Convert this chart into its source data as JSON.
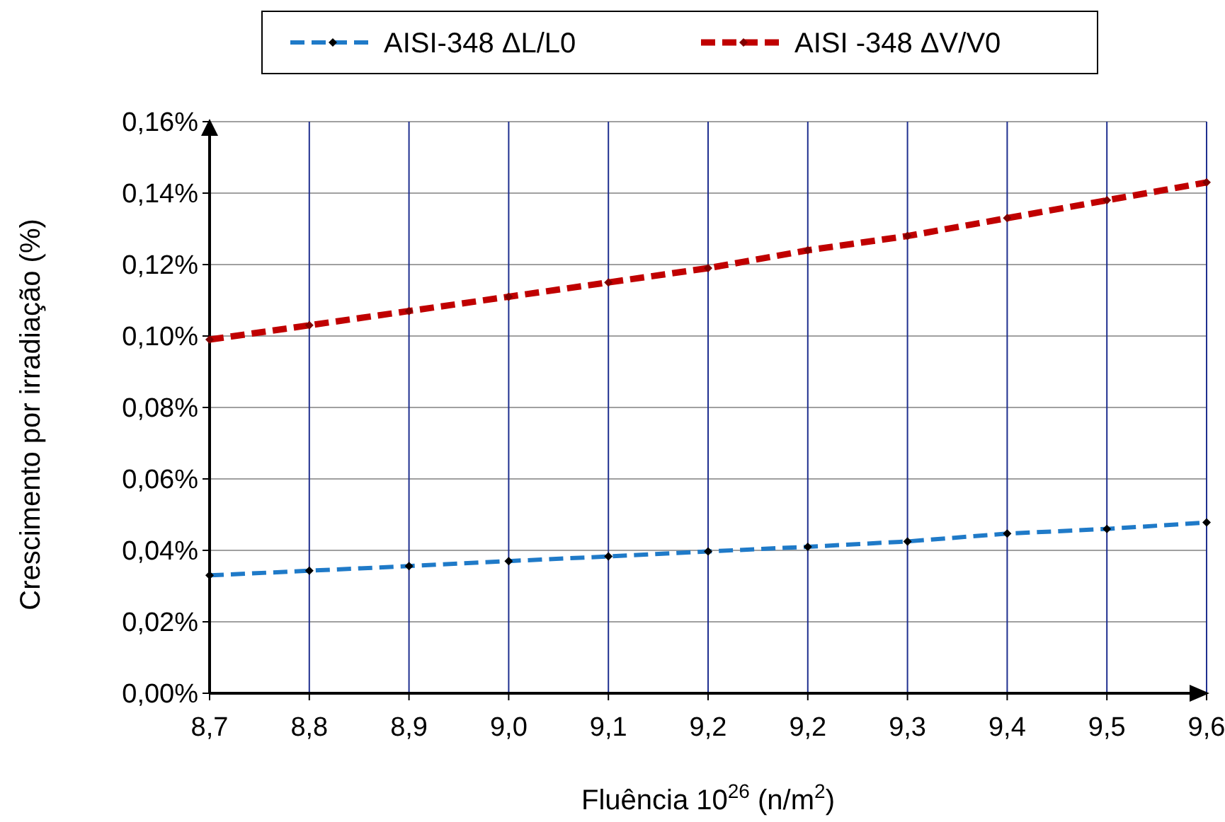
{
  "chart_data": {
    "type": "line",
    "xlabel": "Fluência 10$^{26}$ (n/m$^{2}$)",
    "ylabel": "Crescimento por irradiação (%)",
    "categories": [
      "8,7",
      "8,8",
      "8,9",
      "9,0",
      "9,1",
      "9,2",
      "9,2",
      "9,3",
      "9,4",
      "9,5",
      "9,6"
    ],
    "series": [
      {
        "name": "AISI-348 ΔL/L0",
        "color": "#1f7ac8",
        "values": [
          0.033,
          0.0343,
          0.0356,
          0.037,
          0.0383,
          0.0397,
          0.041,
          0.0425,
          0.0447,
          0.046,
          0.0478
        ]
      },
      {
        "name": "AISI -348 ΔV/V0",
        "color": "#c00000",
        "values": [
          0.099,
          0.103,
          0.107,
          0.111,
          0.115,
          0.119,
          0.124,
          0.128,
          0.133,
          0.138,
          0.143
        ]
      }
    ],
    "ylim": [
      0,
      0.16
    ],
    "yticks": [
      {
        "value": 0,
        "label": "0,00%"
      },
      {
        "value": 0.02,
        "label": "0,02%"
      },
      {
        "value": 0.04,
        "label": "0,04%"
      },
      {
        "value": 0.06,
        "label": "0,06%"
      },
      {
        "value": 0.08,
        "label": "0,08%"
      },
      {
        "value": 0.1,
        "label": "0,10%"
      },
      {
        "value": 0.12,
        "label": "0,12%"
      },
      {
        "value": 0.14,
        "label": "0,14%"
      },
      {
        "value": 0.16,
        "label": "0,16%"
      }
    ],
    "grid": true,
    "legend": "top",
    "marker": "diamond",
    "line_style": "dashed"
  }
}
